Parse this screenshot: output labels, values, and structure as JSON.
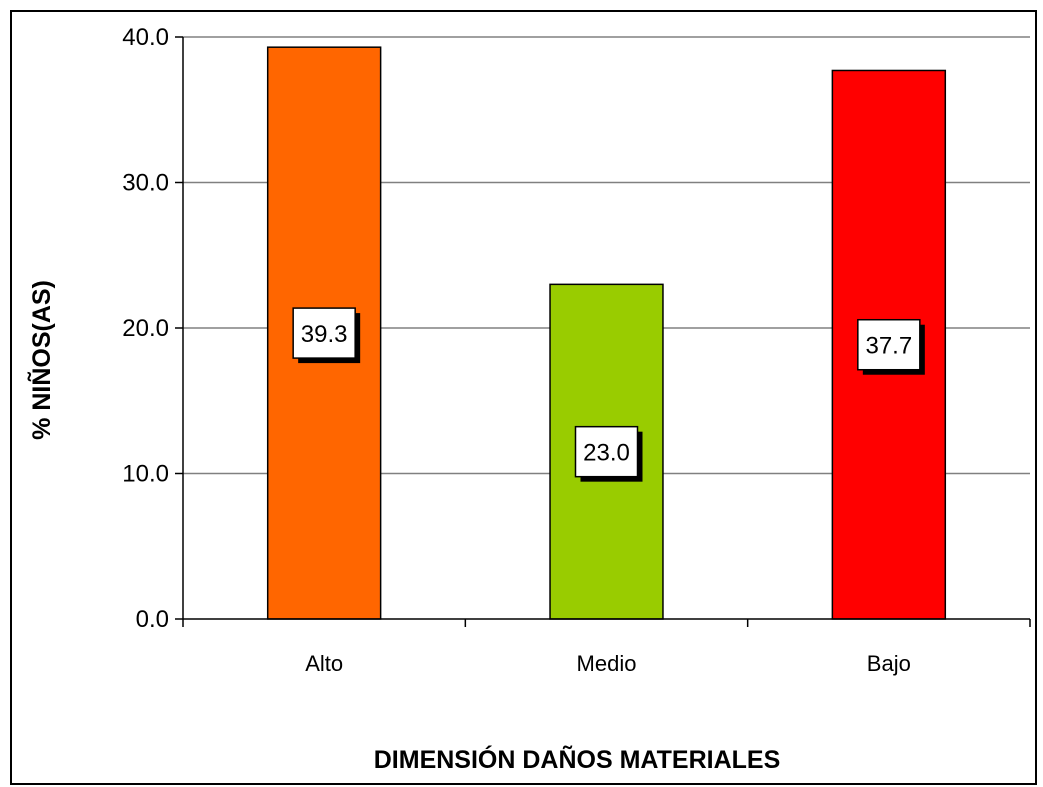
{
  "chart_data": {
    "type": "bar",
    "title": "",
    "xlabel": "DIMENSIÓN DAÑOS MATERIALES",
    "ylabel": "% NIÑOS(AS)",
    "categories": [
      "Alto",
      "Medio",
      "Bajo"
    ],
    "values": [
      39.3,
      23.0,
      37.7
    ],
    "data_labels": [
      "39.3",
      "23.0",
      "37.7"
    ],
    "colors": [
      "#ff6600",
      "#99cc00",
      "#ff0000"
    ],
    "ylim": [
      0,
      40
    ],
    "yticks": [
      0,
      10,
      20,
      30,
      40
    ],
    "ytick_labels": [
      "0.0",
      "10.0",
      "20.0",
      "30.0",
      "40.0"
    ],
    "grid": true,
    "gridline_color": "#808080",
    "legend": "none"
  }
}
